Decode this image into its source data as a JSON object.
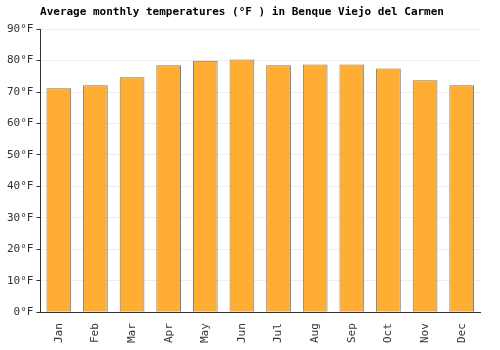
{
  "chart_data": {
    "type": "bar",
    "title": "Average monthly temperatures (°F ) in Benque Viejo del Carmen",
    "categories": [
      "Jan",
      "Feb",
      "Mar",
      "Apr",
      "May",
      "Jun",
      "Jul",
      "Aug",
      "Sep",
      "Oct",
      "Nov",
      "Dec"
    ],
    "values": [
      71.2,
      72.2,
      74.7,
      78.5,
      80.0,
      80.4,
      78.5,
      78.8,
      78.8,
      77.5,
      73.8,
      72.2
    ],
    "color": "#ffad33",
    "ylim": [
      0,
      90
    ],
    "yticks": [
      {
        "value": 0,
        "label": "0°F"
      },
      {
        "value": 10,
        "label": "10°F"
      },
      {
        "value": 20,
        "label": "20°F"
      },
      {
        "value": 30,
        "label": "30°F"
      },
      {
        "value": 40,
        "label": "40°F"
      },
      {
        "value": 50,
        "label": "50°F"
      },
      {
        "value": 60,
        "label": "60°F"
      },
      {
        "value": 70,
        "label": "70°F"
      },
      {
        "value": 80,
        "label": "80°F"
      },
      {
        "value": 90,
        "label": "90°F"
      }
    ],
    "grid": true
  }
}
